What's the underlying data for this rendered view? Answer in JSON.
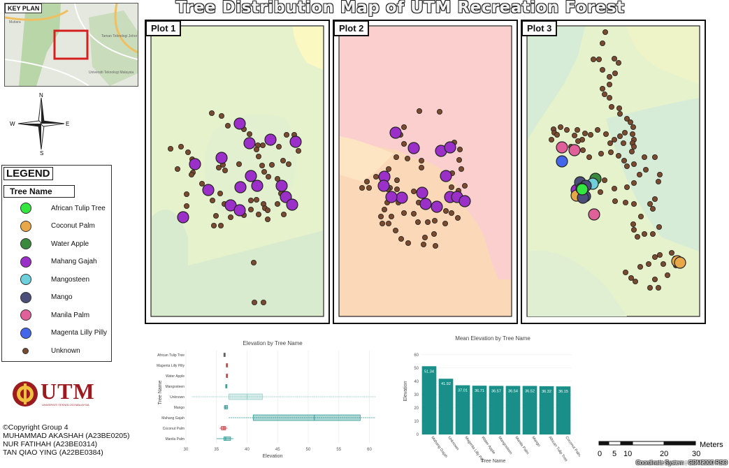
{
  "title": "Tree Distribution Map of UTM Recreation Forest",
  "key_plan": {
    "label": "KEY PLAN",
    "place_labels": [
      "Taman Teknologi Johor",
      "Universiti Teknologi Malaysia",
      "Mutiara"
    ]
  },
  "compass": {
    "n": "N",
    "s": "S",
    "e": "E",
    "w": "W"
  },
  "legend": {
    "title": "LEGEND",
    "subtitle": "Tree Name",
    "items": [
      {
        "label": "African Tulip Tree",
        "color": "#33e640"
      },
      {
        "label": "Coconut Palm",
        "color": "#e8a84a"
      },
      {
        "label": "Water Apple",
        "color": "#3a8a3e"
      },
      {
        "label": "Mahang Gajah",
        "color": "#9b30c8"
      },
      {
        "label": "Mangosteen",
        "color": "#6ccfd9"
      },
      {
        "label": "Mango",
        "color": "#4a4e78"
      },
      {
        "label": "Manila Palm",
        "color": "#e0609a"
      },
      {
        "label": "Magenta Lilly Pilly",
        "color": "#4466e8"
      },
      {
        "label": "Unknown",
        "color": "#7a4a2e"
      }
    ]
  },
  "plots": [
    {
      "label": "Plot 1"
    },
    {
      "label": "Plot 2"
    },
    {
      "label": "Plot 3"
    }
  ],
  "logo": {
    "text": "UTM",
    "subtext": "UNIVERSITI TEKNOLOGI MALAYSIA",
    "color": "#9c1b1f"
  },
  "credits": [
    "©Copyright Group 4",
    "MUHAMMAD AKASHAH (A23BE0205)",
    "NUR FATIHAH (A23BE0314)",
    "TAN QIAO YING (A22BE0384)"
  ],
  "scale_bar": {
    "unit": "Meters",
    "ticks": [
      "0",
      "5",
      "10",
      "20",
      "30"
    ]
  },
  "coordinate_system": "Coordinate System : GDM2000 RSO",
  "chart_data": [
    {
      "type": "box",
      "title": "Elevation by Tree Name",
      "xlabel": "Elevation",
      "ylabel": "Tree Name",
      "categories": [
        "African Tulip Tree",
        "Magenta Lilly Pilly",
        "Water Apple",
        "Mangosteen",
        "Unknown",
        "Mango",
        "Mahang Gajah",
        "Coconut Palm",
        "Manila Palm"
      ],
      "xticks": [
        30,
        35,
        40,
        45,
        50,
        55,
        60
      ],
      "xlim": [
        30,
        62
      ],
      "boxes": [
        {
          "name": "African Tulip Tree",
          "q1": 36.2,
          "median": 36.3,
          "q3": 36.4,
          "min": 36.2,
          "max": 36.4
        },
        {
          "name": "Magenta Lilly Pilly",
          "q1": 36.6,
          "median": 36.7,
          "q3": 36.8,
          "min": 36.6,
          "max": 36.8
        },
        {
          "name": "Water Apple",
          "q1": 36.6,
          "median": 36.7,
          "q3": 36.8,
          "min": 36.6,
          "max": 36.8
        },
        {
          "name": "Mangosteen",
          "q1": 36.5,
          "median": 36.6,
          "q3": 36.7,
          "min": 36.5,
          "max": 36.7
        },
        {
          "name": "Unknown",
          "q1": 37,
          "median": 40,
          "q3": 42.5,
          "min": 31,
          "max": 61
        },
        {
          "name": "Mango",
          "q1": 36.3,
          "median": 36.5,
          "q3": 36.8,
          "min": 36.2,
          "max": 36.9
        },
        {
          "name": "Mahang Gajah",
          "q1": 41,
          "median": 51,
          "q3": 58.5,
          "min": 37,
          "max": 61
        },
        {
          "name": "Coconut Palm",
          "q1": 35.8,
          "median": 36.2,
          "q3": 36.5,
          "min": 35.5,
          "max": 36.8
        },
        {
          "name": "Manila Palm",
          "q1": 36.2,
          "median": 36.5,
          "q3": 37.3,
          "min": 35,
          "max": 37.8
        }
      ]
    },
    {
      "type": "bar",
      "title": "Mean Elevation by Tree Name",
      "xlabel": "Tree Name",
      "ylabel": "Elevation",
      "categories": [
        "Mahang Gajah",
        "Unknown",
        "Magenta Lilly Pilly",
        "Water Apple",
        "Mangosteen",
        "Manila Palm",
        "Mango",
        "African Tulip Tree",
        "Coconut Palm"
      ],
      "values": [
        51.34,
        41.92,
        37.01,
        36.71,
        36.57,
        36.54,
        36.52,
        36.32,
        36.15
      ],
      "value_labels": [
        "51.34",
        "41.92",
        "37.01",
        "36.71",
        "36.57",
        "36.54",
        "36.52",
        "36.32",
        "36.15"
      ],
      "yticks": [
        0,
        10,
        20,
        30,
        40,
        50,
        60
      ],
      "ylim": [
        0,
        62
      ],
      "color": "#1a8f8a"
    }
  ]
}
